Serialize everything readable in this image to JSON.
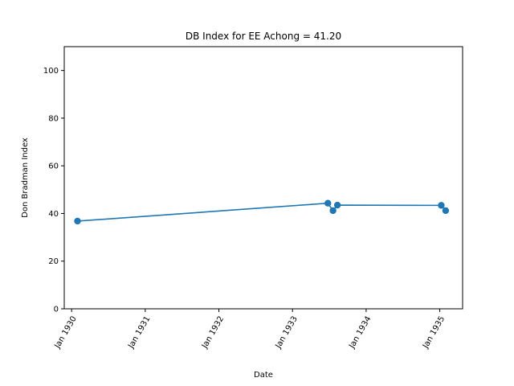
{
  "chart_data": {
    "type": "line",
    "title": "DB Index for EE Achong = 41.20",
    "xlabel": "Date",
    "ylabel": "Don Bradman Index",
    "ylim": [
      0,
      110
    ],
    "xlim": [
      1929.9,
      1935.31
    ],
    "yticks": [
      0,
      20,
      40,
      60,
      80,
      100
    ],
    "xticks": [
      {
        "value": 1930,
        "label": "Jan 1930"
      },
      {
        "value": 1931,
        "label": "Jan 1931"
      },
      {
        "value": 1932,
        "label": "Jan 1932"
      },
      {
        "value": 1933,
        "label": "Jan 1933"
      },
      {
        "value": 1934,
        "label": "Jan 1934"
      },
      {
        "value": 1935,
        "label": "Jan 1935"
      }
    ],
    "series": [
      {
        "name": "EE Achong",
        "color": "#1f77b4",
        "points": [
          {
            "x": 1930.08,
            "y": 36.8
          },
          {
            "x": 1933.48,
            "y": 44.3
          },
          {
            "x": 1933.55,
            "y": 41.2
          },
          {
            "x": 1933.61,
            "y": 43.5
          },
          {
            "x": 1935.02,
            "y": 43.4
          },
          {
            "x": 1935.08,
            "y": 41.2
          }
        ]
      }
    ],
    "grid": false,
    "legend": "none"
  }
}
